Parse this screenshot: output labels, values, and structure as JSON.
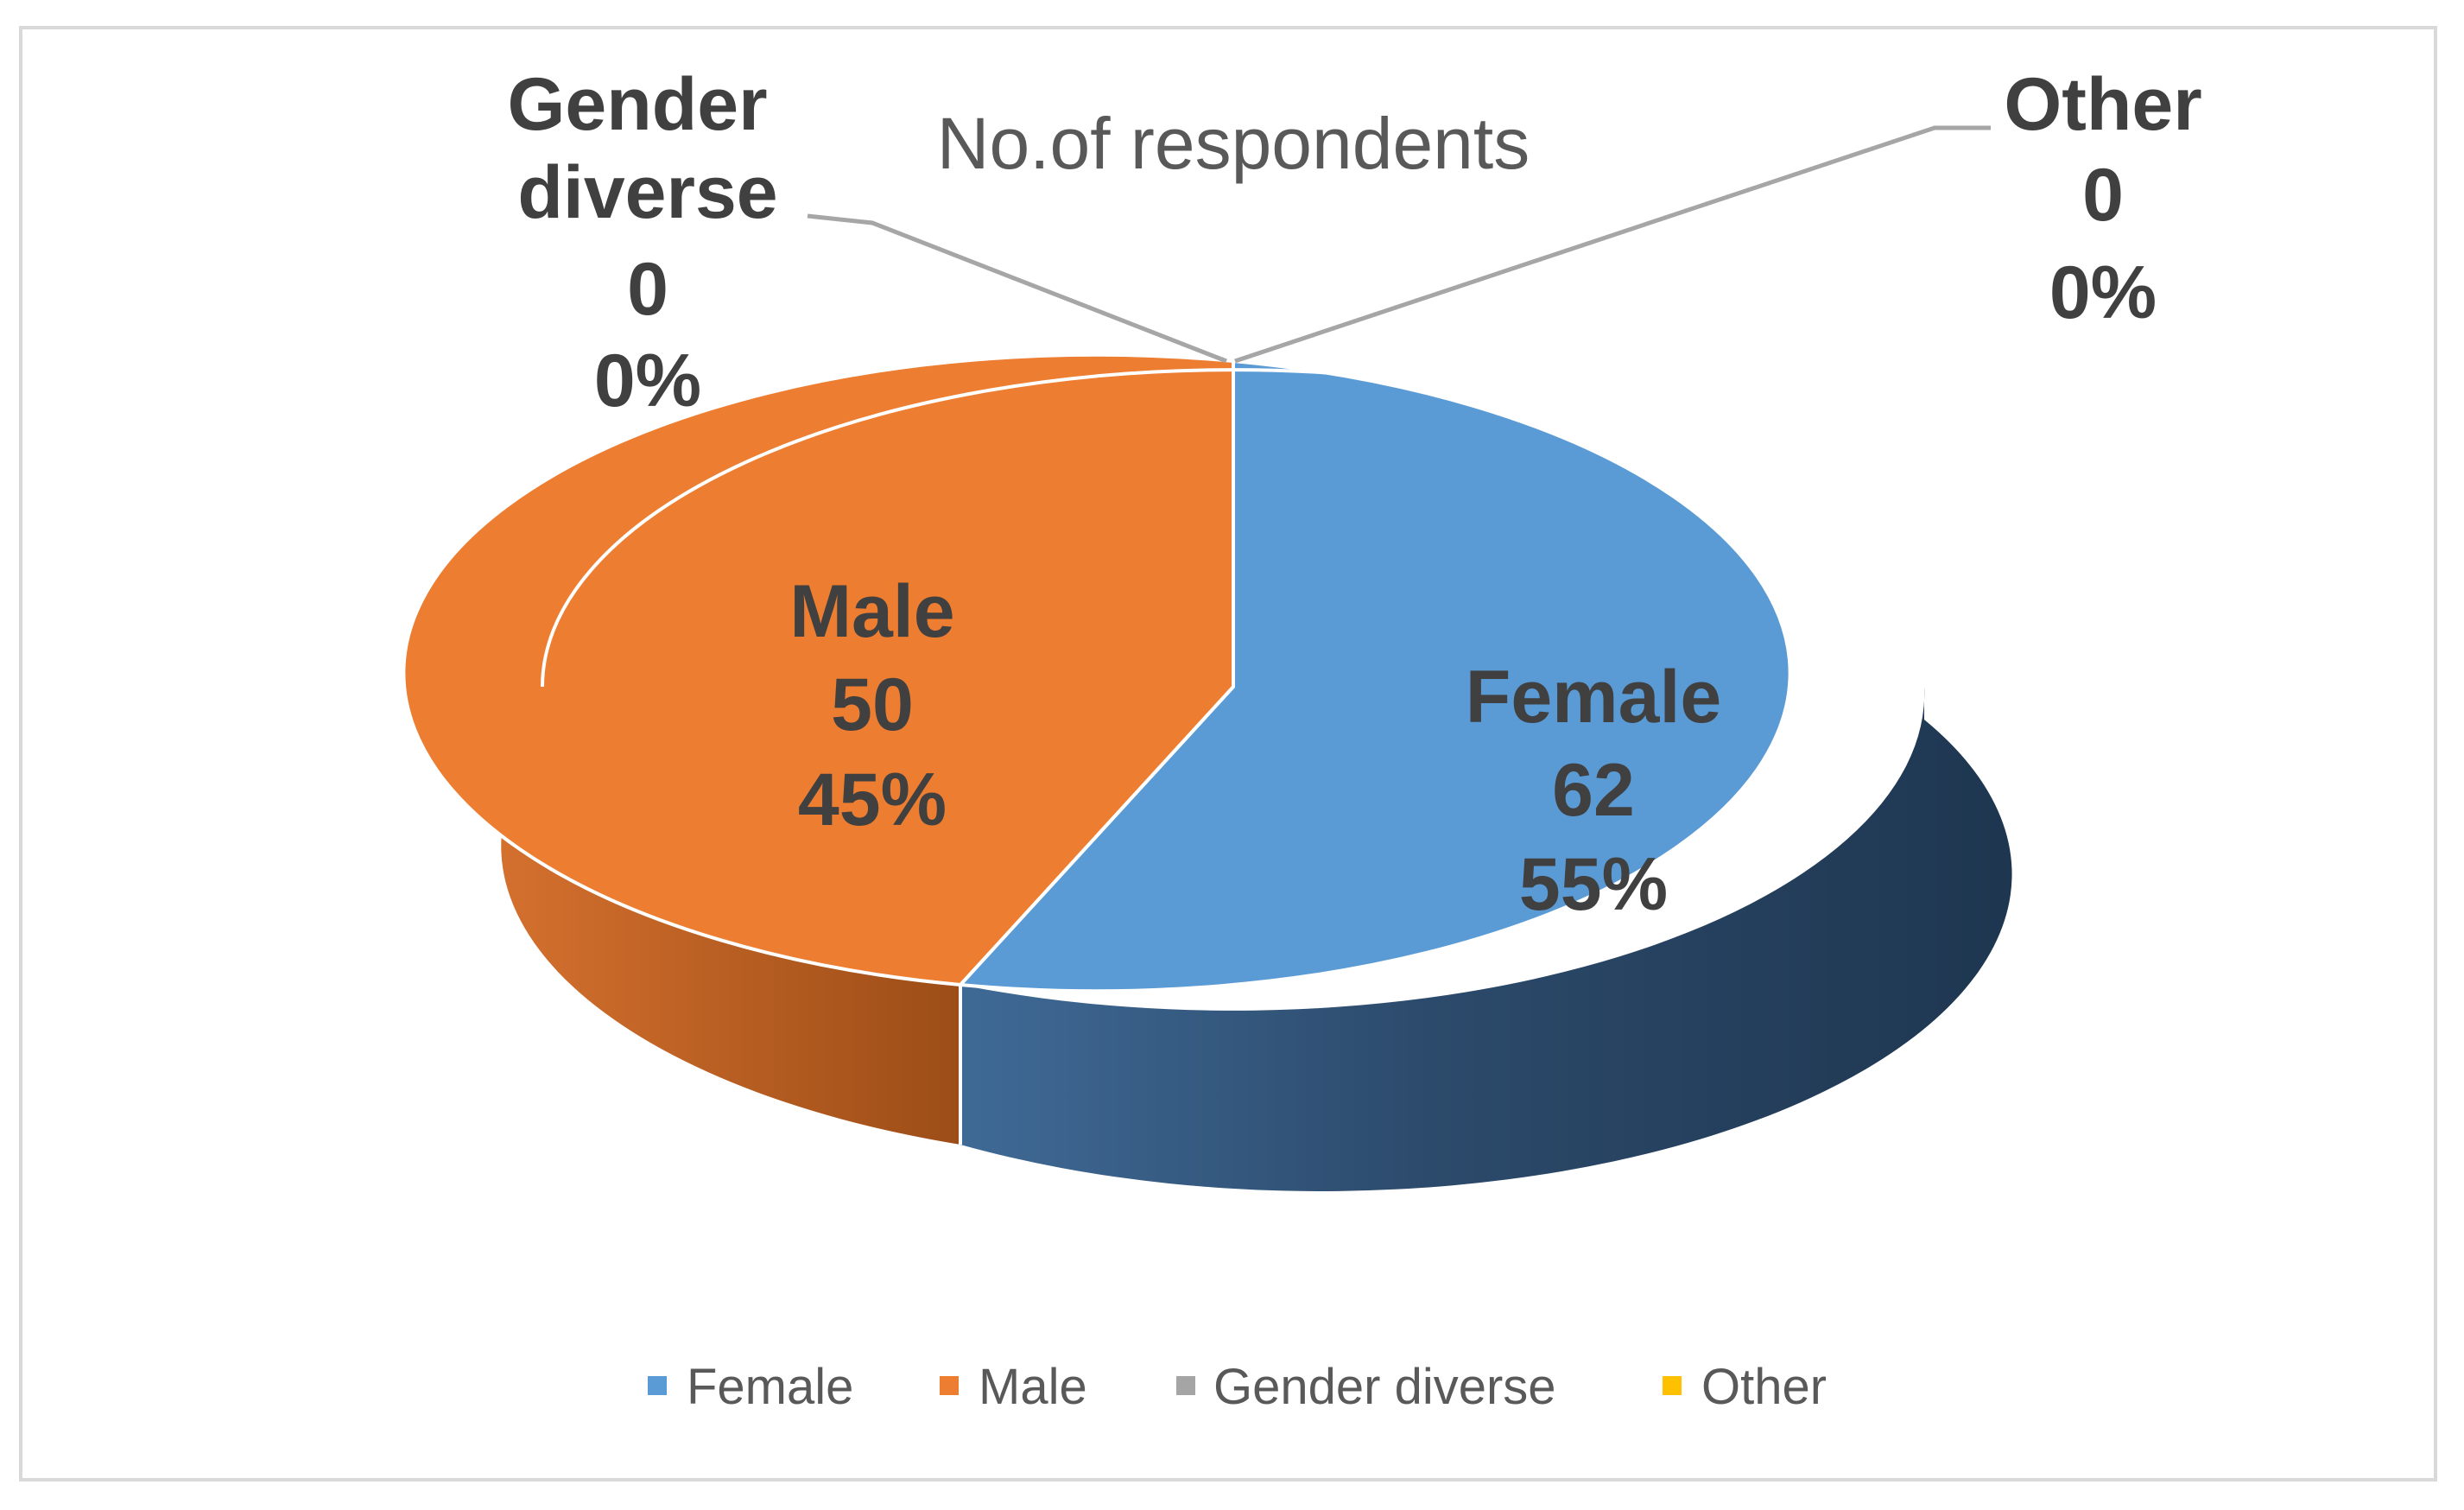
{
  "chart_data": {
    "type": "pie",
    "title": "No.of respondents",
    "categories": [
      "Female",
      "Male",
      "Gender diverse",
      "Other"
    ],
    "values": [
      62,
      50,
      0,
      0
    ],
    "percent_labels": [
      "55%",
      "45%",
      "0%",
      "0%"
    ],
    "colors": [
      "#5b9bd5",
      "#ed7d31",
      "#a5a5a5",
      "#ffc000"
    ],
    "style": "3d",
    "legend": "bottom"
  }
}
